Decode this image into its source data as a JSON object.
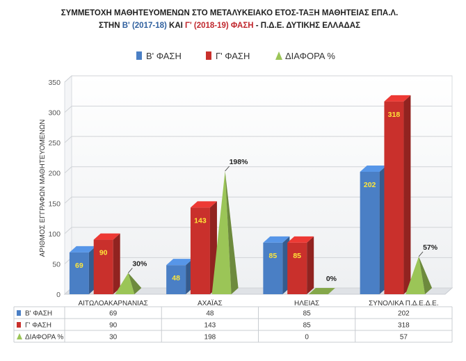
{
  "title": {
    "line1": "ΣΥΜΜΕΤΟΧΗ ΜΑΘΗΤΕΥΟΜΕΝΩΝ ΣΤΟ ΜΕΤΑΛΥΚΕΙΑΚΟ ΕΤΟΣ-ΤΑΞΗ ΜΑΘΗΤΕΙΑΣ ΕΠΑ.Λ.",
    "line2_prefix": "ΣΤΗΝ ",
    "line2_b": "Β' (2017-18)",
    "line2_mid": " ΚΑΙ ",
    "line2_g": "Γ' (2018-19) ΦΑΣΗ",
    "line2_suffix": " - Π.Δ.Ε. ΔΥΤΙΚΗΣ ΕΛΛΑΔΑΣ"
  },
  "colors": {
    "title_blue": "#2e5f9e",
    "title_red": "#c0272d",
    "title_dark": "#1f1f1f",
    "series_b": "#4a7fc5",
    "series_g": "#c9302c",
    "series_diff": "#9bc557",
    "label_yellow": "#ffe63a"
  },
  "chart_data": {
    "type": "bar",
    "title": "ΣΥΜΜΕΤΟΧΗ ΜΑΘΗΤΕΥΟΜΕΝΩΝ ΣΤΟ ΜΕΤΑΛΥΚΕΙΑΚΟ ΕΤΟΣ-ΤΑΞΗ ΜΑΘΗΤΕΙΑΣ ΕΠΑ.Λ. ΣΤΗΝ Β' (2017-18) ΚΑΙ Γ' (2018-19) ΦΑΣΗ - Π.Δ.Ε. ΔΥΤΙΚΗΣ ΕΛΛΑΔΑΣ",
    "ylabel": "ΑΡΙΘΜΟΣ ΕΓΓΡΑΦΩΝ ΜΑΘΗΤΕΥΟΜΕΝΩΝ",
    "xlabel": "",
    "ylim": [
      0,
      350
    ],
    "yticks": [
      0,
      50,
      100,
      150,
      200,
      250,
      300,
      350
    ],
    "grid": true,
    "legend_position": "top",
    "categories": [
      "ΑΙΤΩΛΟΑΚΑΡΝΑΝΙΑΣ",
      "ΑΧΑΪΑΣ",
      "ΗΛΕΙΑΣ",
      "ΣΥΝΟΛΙΚΑ Π.Δ.Ε.Δ.Ε."
    ],
    "series": [
      {
        "name": "Β' ΦΑΣΗ",
        "shape": "column",
        "values": [
          69,
          48,
          85,
          202
        ],
        "labels": [
          "69",
          "48",
          "85",
          "202"
        ]
      },
      {
        "name": "Γ' ΦΑΣΗ",
        "shape": "column",
        "values": [
          90,
          143,
          85,
          318
        ],
        "labels": [
          "90",
          "143",
          "85",
          "318"
        ]
      },
      {
        "name": "ΔΙΑΦΟΡΑ %",
        "shape": "pyramid",
        "values": [
          30,
          198,
          0,
          57
        ],
        "labels": [
          "30%",
          "198%",
          "0%",
          "57%"
        ]
      }
    ],
    "table": {
      "rows": [
        {
          "series": "Β' ΦΑΣΗ",
          "cells": [
            "69",
            "48",
            "85",
            "202"
          ]
        },
        {
          "series": "Γ' ΦΑΣΗ",
          "cells": [
            "90",
            "143",
            "85",
            "318"
          ]
        },
        {
          "series": "ΔΙΑΦΟΡΑ %",
          "cells": [
            "30",
            "198",
            "0",
            "57"
          ]
        }
      ]
    }
  }
}
